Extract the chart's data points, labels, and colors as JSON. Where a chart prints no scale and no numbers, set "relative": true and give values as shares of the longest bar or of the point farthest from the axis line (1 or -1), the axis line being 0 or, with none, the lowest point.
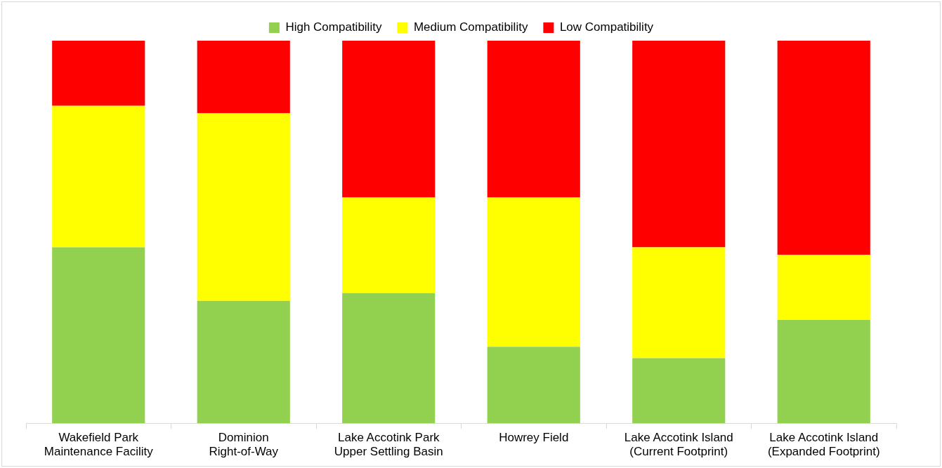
{
  "chart_data": {
    "type": "bar",
    "stacked": true,
    "relative": true,
    "legend": "top",
    "grid": false,
    "categories": [
      "Wakefield Park Maintenance Facility",
      "Dominion Right-of-Way",
      "Lake Accotink Park Upper Settling Basin",
      "Howrey Field",
      "Lake Accotink Island (Current Footprint)",
      "Lake Accotink Island (Expanded Footprint)"
    ],
    "series": [
      {
        "name": "High Compatibility",
        "color": "#92d050",
        "values": [
          0.46,
          0.32,
          0.34,
          0.2,
          0.17,
          0.27
        ]
      },
      {
        "name": "Medium Compatibility",
        "color": "#ffff00",
        "values": [
          0.37,
          0.49,
          0.25,
          0.39,
          0.29,
          0.17
        ]
      },
      {
        "name": "Low Compatibility",
        "color": "#ff0000",
        "values": [
          0.17,
          0.19,
          0.41,
          0.41,
          0.54,
          0.56
        ]
      }
    ]
  }
}
